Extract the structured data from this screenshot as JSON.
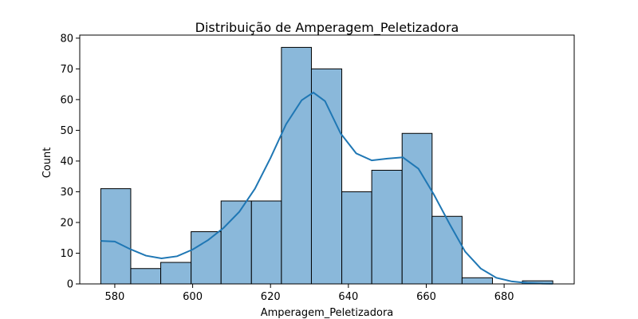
{
  "chart_data": {
    "type": "bar",
    "title": "Distribuição de Amperagem_Peletizadora",
    "xlabel": "Amperagem_Peletizadora",
    "ylabel": "Count",
    "xlim": [
      571,
      698
    ],
    "ylim": [
      0,
      81
    ],
    "xticks": [
      580,
      600,
      620,
      640,
      660,
      680
    ],
    "yticks": [
      0,
      10,
      20,
      30,
      40,
      50,
      60,
      70,
      80
    ],
    "grid": false,
    "legend": false,
    "bin_edges": [
      576.4,
      584.1,
      591.8,
      599.6,
      607.3,
      615.1,
      622.8,
      630.5,
      638.3,
      646.0,
      653.8,
      661.5,
      669.2,
      677.0,
      684.7,
      692.5
    ],
    "counts": [
      31,
      5,
      7,
      17,
      27,
      27,
      77,
      70,
      30,
      37,
      49,
      22,
      2,
      0,
      1
    ],
    "kde": {
      "x": [
        576.4,
        580,
        584,
        588,
        592,
        596,
        600,
        604,
        608,
        612,
        616,
        620,
        624,
        628,
        631,
        634,
        638,
        642,
        646,
        650,
        654,
        658,
        662,
        666,
        670,
        674,
        678,
        682,
        686,
        690,
        692.5
      ],
      "y": [
        14,
        13.8,
        11.3,
        9.2,
        8.3,
        9.0,
        11.2,
        14.3,
        18.3,
        23.5,
        31.0,
        41.0,
        52.0,
        59.8,
        62.3,
        59.5,
        49.0,
        42.5,
        40.2,
        40.8,
        41.2,
        37.5,
        29.0,
        19.5,
        10.5,
        5.0,
        2.0,
        0.8,
        0.3,
        0.1,
        0.05
      ]
    },
    "colors": {
      "bar_fill": "#8ab8da",
      "bar_edge": "#000000",
      "kde_line": "#1f77b4"
    }
  }
}
